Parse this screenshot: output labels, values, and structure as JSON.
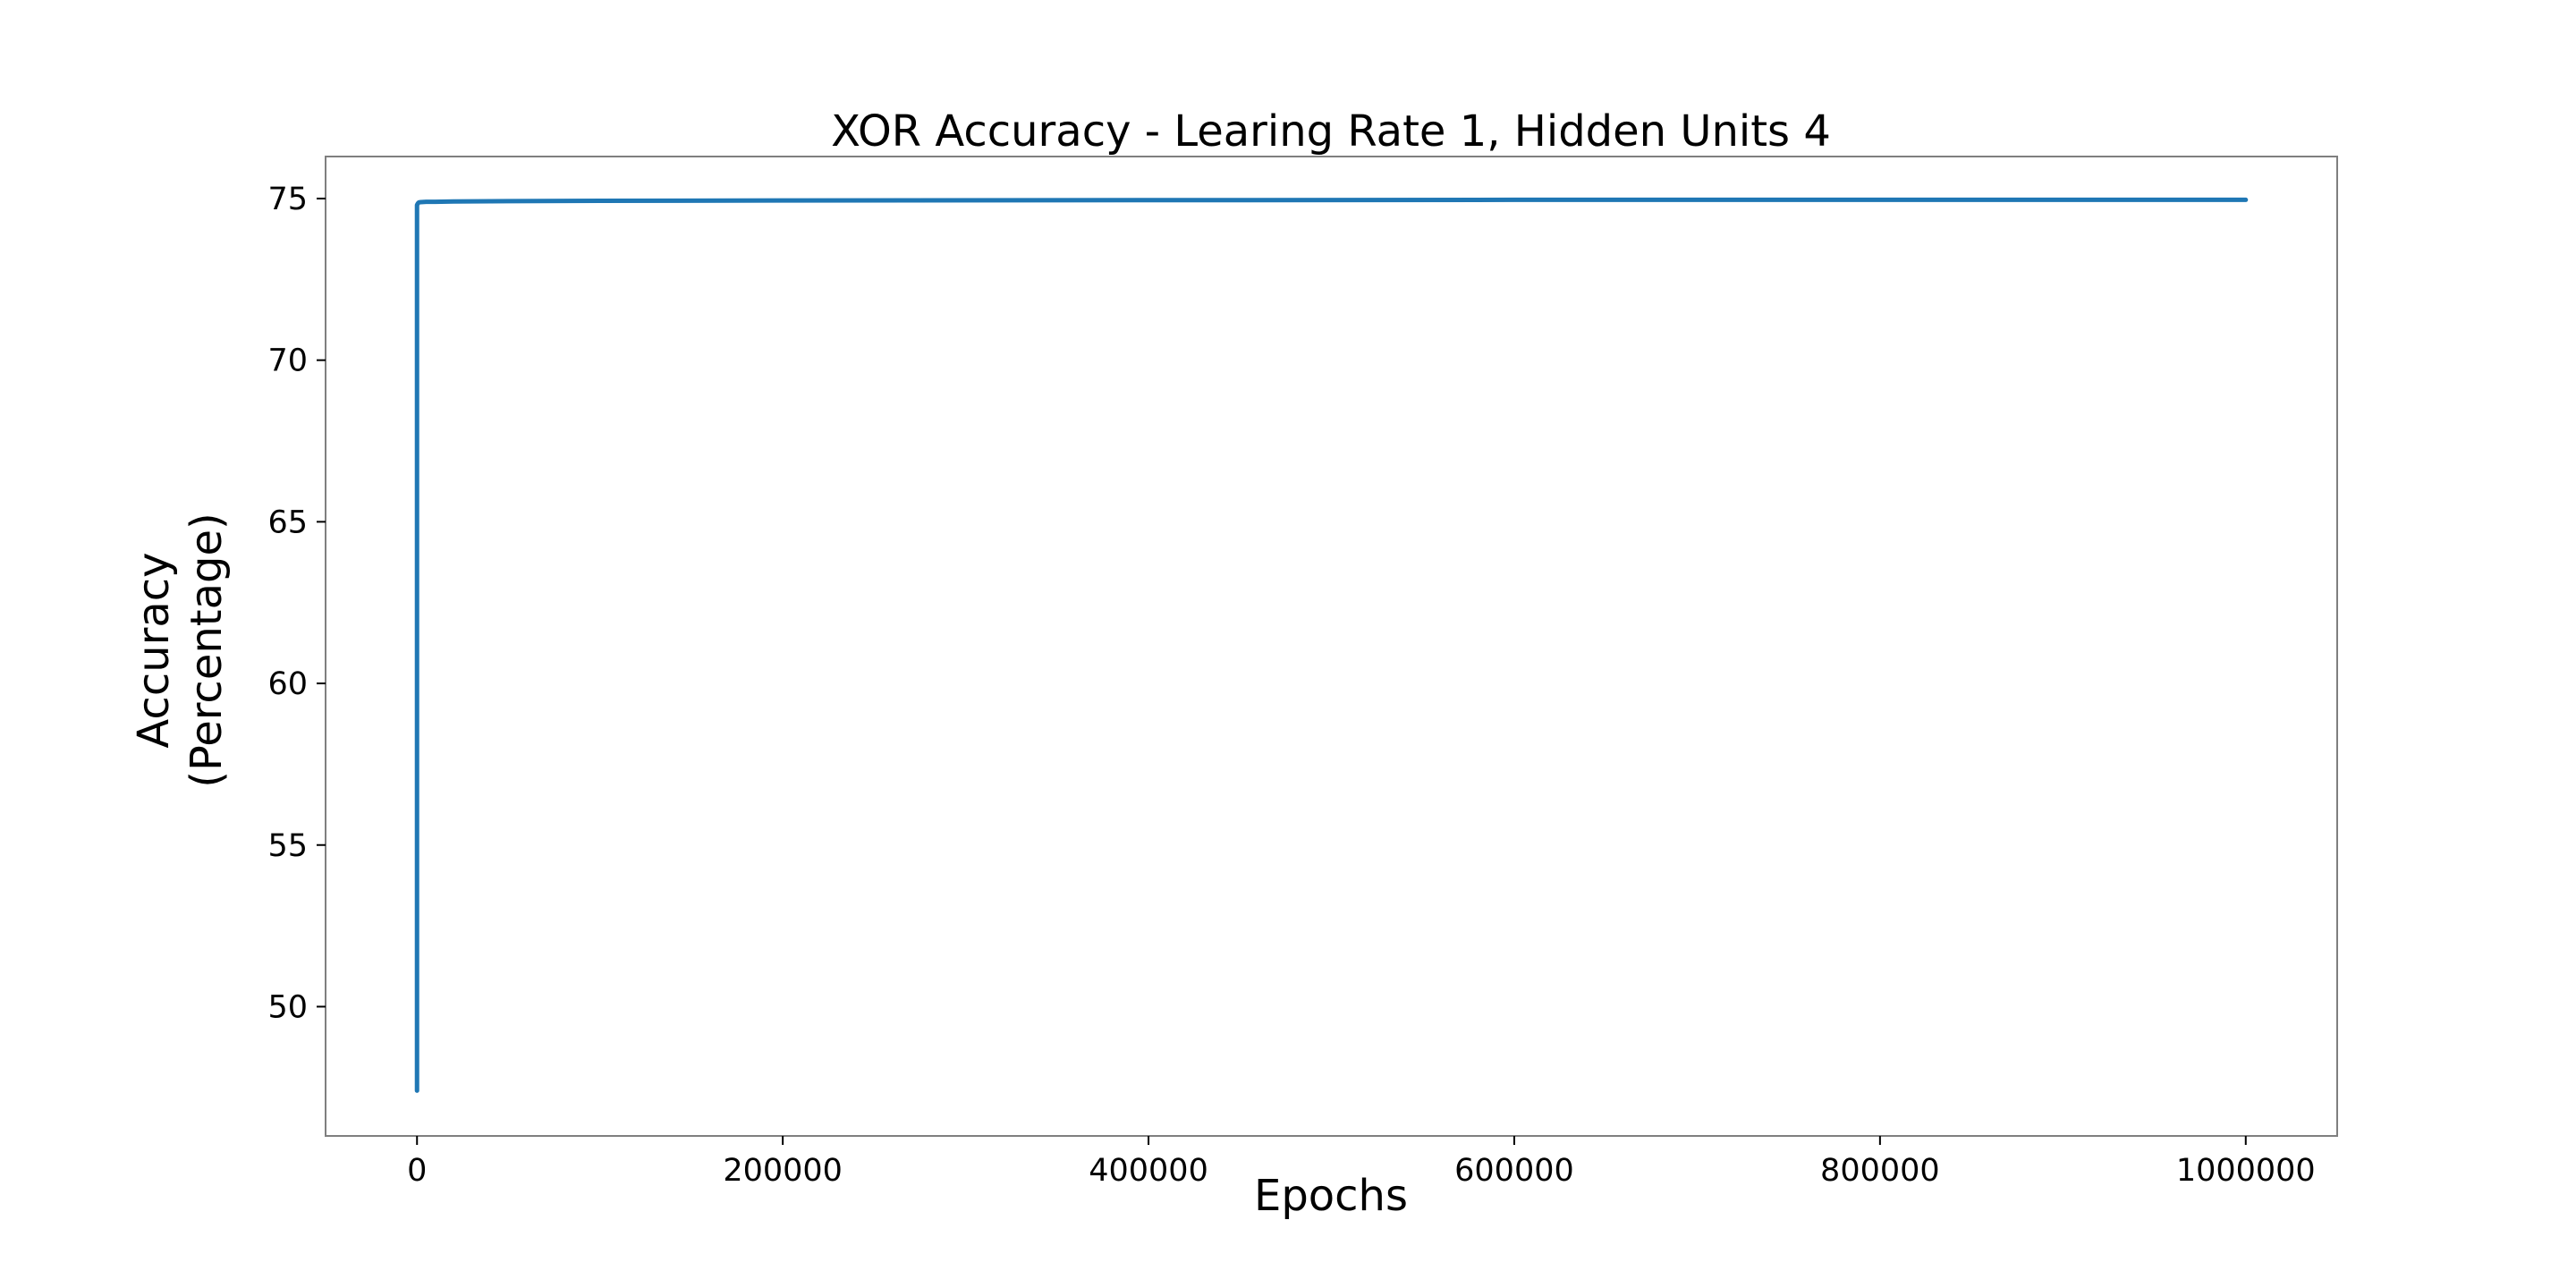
{
  "chart_data": {
    "type": "line",
    "title": "XOR Accuracy - Learing Rate 1, Hidden Units 4",
    "xlabel": "Epochs",
    "ylabel_lines": [
      "Accuracy",
      "(Percentage)"
    ],
    "xlim": [
      -50000,
      1050000
    ],
    "ylim": [
      46,
      76.3
    ],
    "xticks": [
      0,
      200000,
      400000,
      600000,
      800000,
      1000000
    ],
    "xtick_labels": [
      "0",
      "200000",
      "400000",
      "600000",
      "800000",
      "1000000"
    ],
    "yticks": [
      50,
      55,
      60,
      65,
      70,
      75
    ],
    "ytick_labels": [
      "50",
      "55",
      "60",
      "65",
      "70",
      "75"
    ],
    "grid": false,
    "series": [
      {
        "color": "#1f77b4",
        "x": [
          0,
          0,
          0,
          0,
          0,
          0,
          0,
          0,
          0,
          0,
          0,
          500,
          1000,
          2000,
          5000,
          10000,
          20000,
          50000,
          100000,
          200000,
          400000,
          600000,
          800000,
          1000000
        ],
        "y": [
          50,
          47.4,
          54,
          63.2,
          55,
          68,
          70.5,
          72.5,
          74,
          74.6,
          74.8,
          74.85,
          74.88,
          74.89,
          74.9,
          74.9,
          74.91,
          74.92,
          74.93,
          74.94,
          74.95,
          74.96,
          74.96,
          74.96
        ]
      }
    ]
  }
}
